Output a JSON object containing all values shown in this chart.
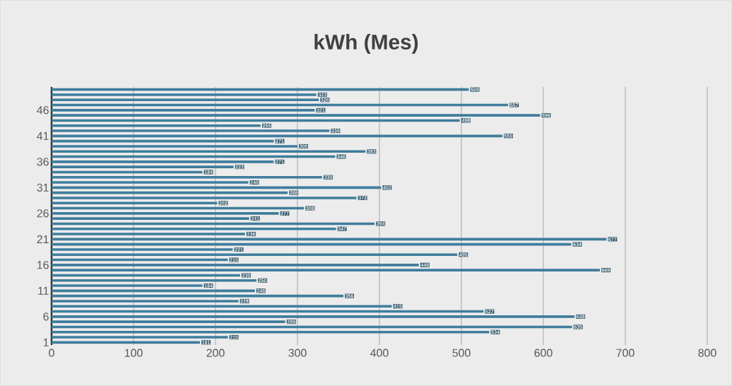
{
  "chart_data": {
    "type": "bar",
    "orientation": "horizontal",
    "title": "kWh (Mes)",
    "categories": [
      null,
      null,
      null,
      null,
      "46",
      null,
      null,
      null,
      null,
      "41",
      null,
      null,
      null,
      null,
      "36",
      null,
      null,
      null,
      null,
      "31",
      null,
      null,
      null,
      null,
      "26",
      null,
      null,
      null,
      null,
      "21",
      null,
      null,
      null,
      null,
      "16",
      null,
      null,
      null,
      null,
      "11",
      null,
      null,
      null,
      null,
      "6",
      null,
      null,
      null,
      null,
      "1"
    ],
    "values": [
      509,
      323,
      326,
      557,
      321,
      596,
      498,
      255,
      339,
      550,
      271,
      300,
      383,
      346,
      271,
      222,
      184,
      330,
      240,
      402,
      288,
      372,
      202,
      308,
      277,
      241,
      394,
      347,
      236,
      677,
      634,
      221,
      495,
      215,
      448,
      669,
      230,
      250,
      184,
      248,
      356,
      228,
      415,
      527,
      638,
      285,
      635,
      534,
      215,
      181
    ],
    "color": "#3f7d9c",
    "xlim": [
      0,
      800
    ],
    "xticks": [
      0,
      100,
      200,
      300,
      400,
      500,
      600,
      700,
      800
    ],
    "grid": "x",
    "data_labels": true
  }
}
